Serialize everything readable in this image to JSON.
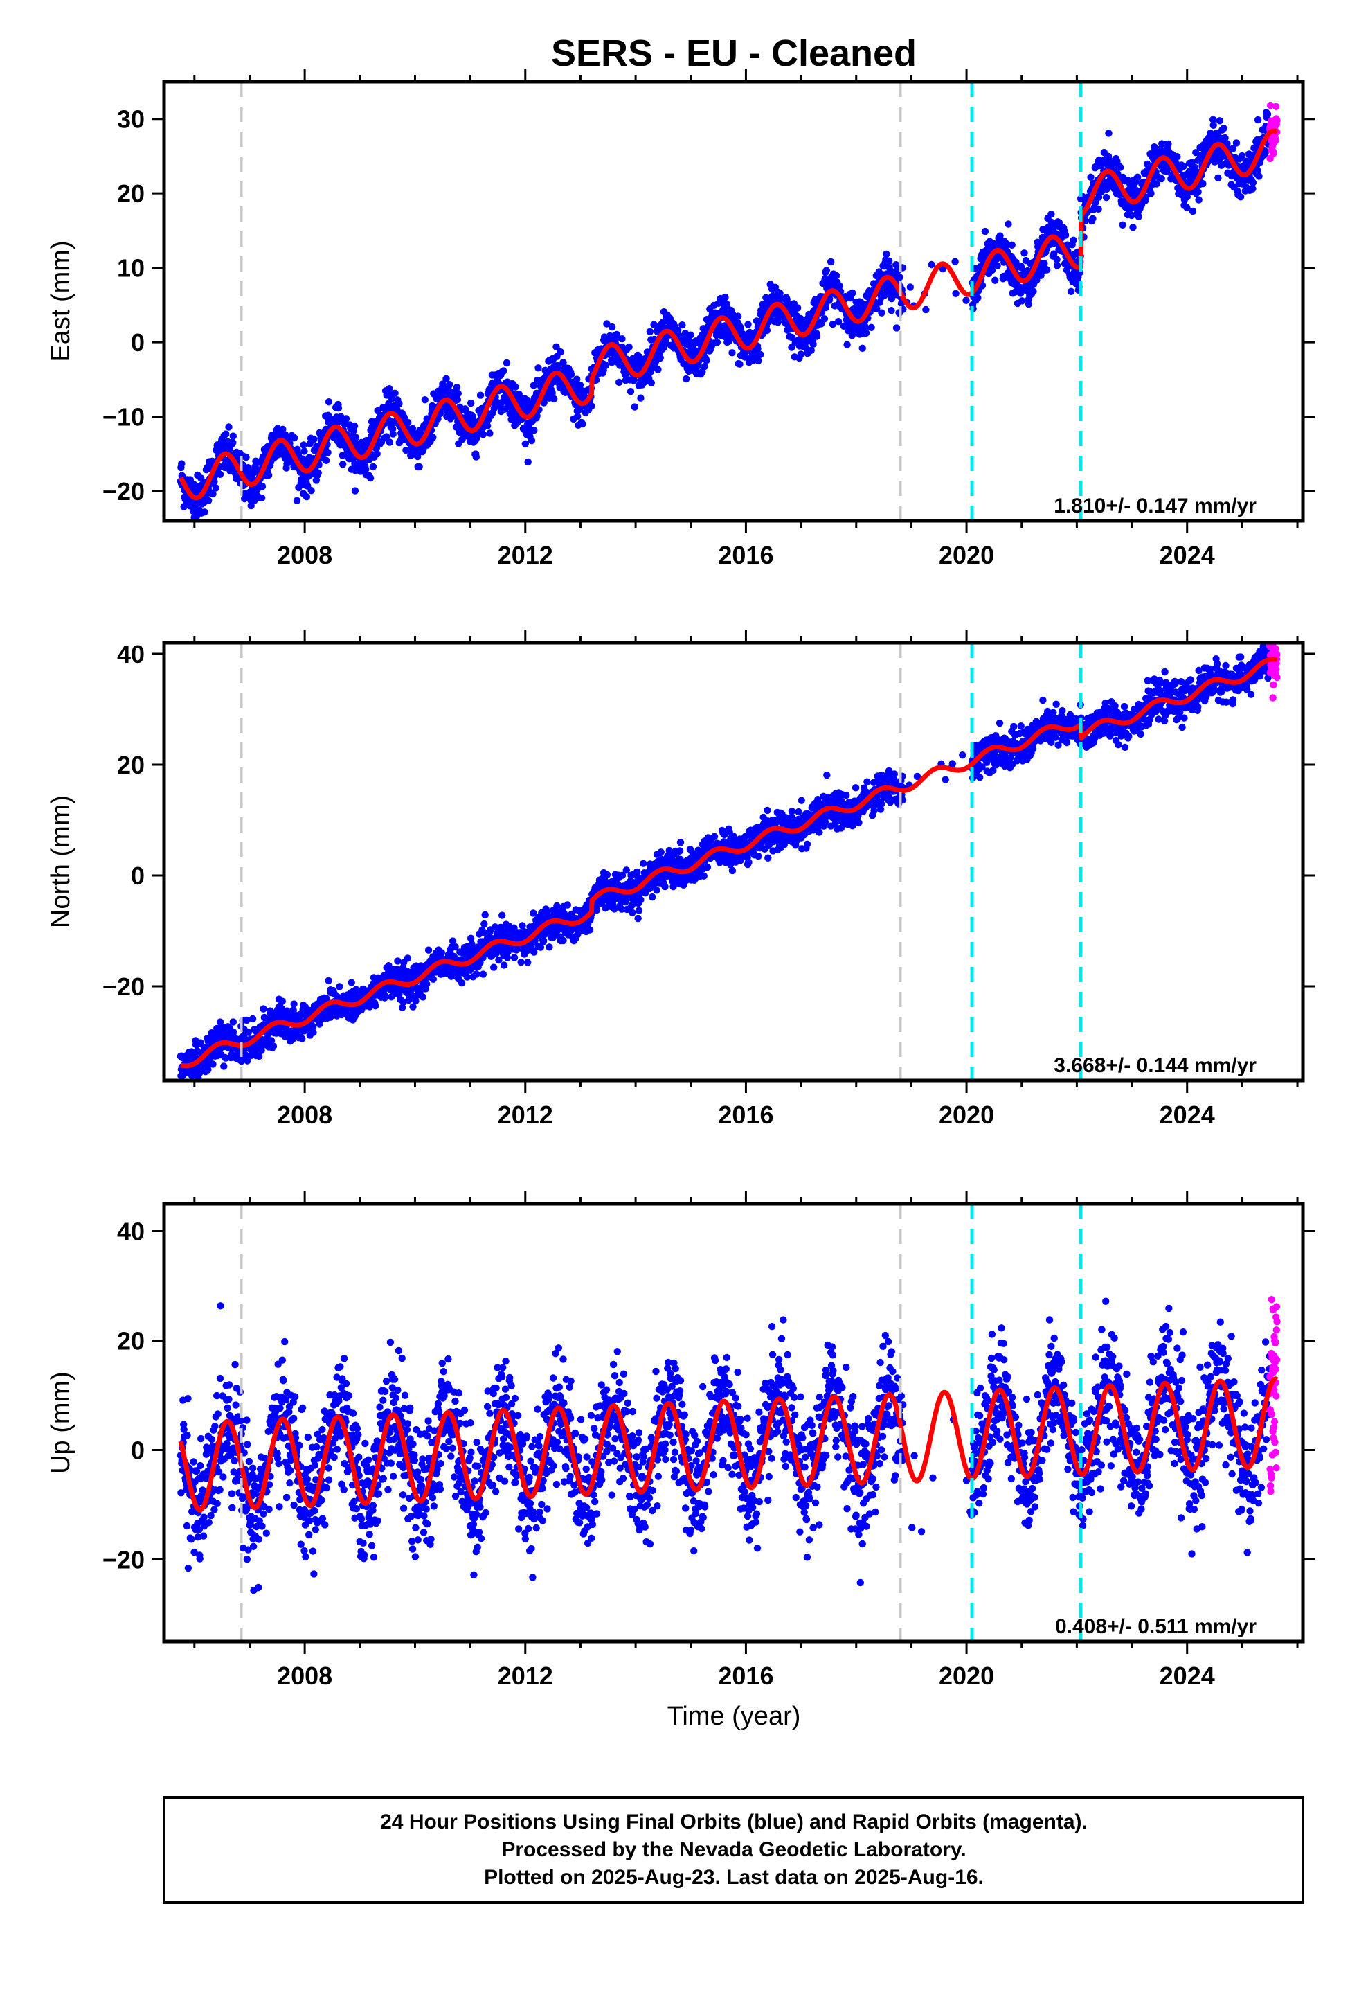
{
  "title": "SERS  - EU - Cleaned",
  "xlabel": "Time (year)",
  "footer": [
    "24 Hour Positions Using Final Orbits (blue) and Rapid Orbits (magenta).",
    "Processed by the Nevada Geodetic Laboratory.",
    "Plotted on 2025-Aug-23. Last data on 2025-Aug-16."
  ],
  "colors": {
    "final_orbits": "#0000ff",
    "rapid_orbits": "#ff00ff",
    "model": "#ff0000",
    "equipment_change": "#c8c8c8",
    "earthquake": "#00e5ee"
  },
  "chart_data": [
    {
      "type": "scatter",
      "panel": "east",
      "ylabel": "East (mm)",
      "xlim": [
        2005.45,
        2026.1
      ],
      "ylim": [
        -24,
        35
      ],
      "xticks": [
        "2008",
        "2012",
        "2016",
        "2020",
        "2024"
      ],
      "yticks": [
        "-20",
        "-10",
        "0",
        "10",
        "20",
        "30"
      ],
      "rate_text": "1.810+/- 0.147 mm/yr",
      "rate_mm_yr": 1.81,
      "rate_sigma_mm_yr": 0.147,
      "equipment_change_years": [
        2006.85,
        2018.8
      ],
      "earthquake_years": [
        2020.1,
        2022.07
      ],
      "model": {
        "offset_at_2006": -18.5,
        "seasonal_amplitude": 2.5,
        "seasonal_phase_peak": 0.55,
        "steps": [
          {
            "year": 2013.2,
            "size": 2.0
          },
          {
            "year": 2022.07,
            "size": 7.0
          }
        ]
      },
      "series": [
        {
          "name": "Final Orbits (blue)",
          "start": 2005.75,
          "end": 2025.5,
          "noise_mm": 1.5
        },
        {
          "name": "Rapid Orbits (magenta)",
          "start": 2025.5,
          "end": 2025.63,
          "noise_mm": 1.8
        }
      ]
    },
    {
      "type": "scatter",
      "panel": "north",
      "ylabel": "North (mm)",
      "xlim": [
        2005.45,
        2026.1
      ],
      "ylim": [
        -37,
        42
      ],
      "xticks": [
        "2008",
        "2012",
        "2016",
        "2020",
        "2024"
      ],
      "yticks": [
        "-20",
        "0",
        "20",
        "40"
      ],
      "rate_text": "3.668+/- 0.144 mm/yr",
      "rate_mm_yr": 3.668,
      "rate_sigma_mm_yr": 0.144,
      "equipment_change_years": [
        2006.85,
        2018.8
      ],
      "earthquake_years": [
        2020.1,
        2022.07
      ],
      "model": {
        "offset_at_2006": -33.0,
        "seasonal_amplitude": 1.0,
        "seasonal_phase_peak": 0.45,
        "steps": [
          {
            "year": 2013.2,
            "size": 2.0
          },
          {
            "year": 2022.07,
            "size": -2.5
          }
        ]
      },
      "series": [
        {
          "name": "Final Orbits (blue)",
          "start": 2005.75,
          "end": 2025.5,
          "noise_mm": 1.6
        },
        {
          "name": "Rapid Orbits (magenta)",
          "start": 2025.5,
          "end": 2025.63,
          "noise_mm": 3.0
        }
      ]
    },
    {
      "type": "scatter",
      "panel": "up",
      "ylabel": "Up (mm)",
      "xlim": [
        2005.45,
        2026.1
      ],
      "ylim": [
        -35,
        45
      ],
      "xticks": [
        "2008",
        "2012",
        "2016",
        "2020",
        "2024"
      ],
      "yticks": [
        "-20",
        "0",
        "20",
        "40"
      ],
      "rate_text": "0.408+/- 0.511 mm/yr",
      "rate_mm_yr": 0.408,
      "rate_sigma_mm_yr": 0.511,
      "equipment_change_years": [
        2006.85,
        2018.8
      ],
      "earthquake_years": [
        2020.1,
        2022.07
      ],
      "model": {
        "offset_at_2006": -3.0,
        "seasonal_amplitude": 8.0,
        "seasonal_phase_peak": 0.6,
        "steps": []
      },
      "series": [
        {
          "name": "Final Orbits (blue)",
          "start": 2005.75,
          "end": 2025.5,
          "noise_mm": 5.5
        },
        {
          "name": "Rapid Orbits (magenta)",
          "start": 2025.5,
          "end": 2025.63,
          "noise_mm": 10.0
        }
      ]
    }
  ]
}
